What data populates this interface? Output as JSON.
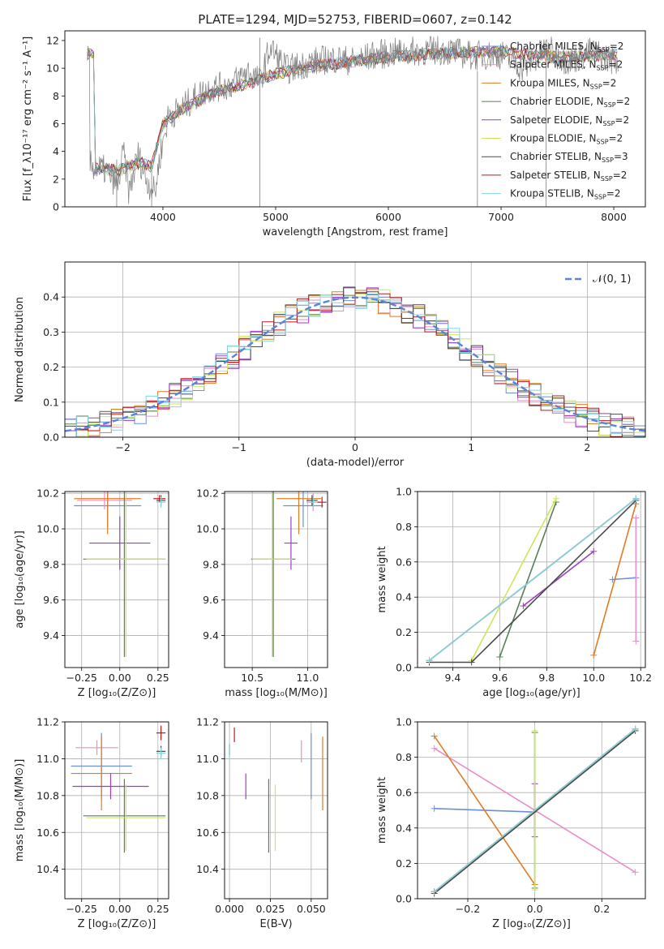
{
  "figure": {
    "title": "PLATE=1294, MJD=52753, FIBERID=0607, z=0.142"
  },
  "model_colors": {
    "Chabrier MILES": "#6b8fd6",
    "Salpeter MILES": "#e98ec8",
    "Kroupa MILES": "#e07b24",
    "Chabrier ELODIE": "#5a7f5a",
    "Salpeter ELODIE": "#9b3fc0",
    "Kroupa ELODIE": "#c9e85a",
    "Chabrier STELIB": "#4a4a4a",
    "Salpeter STELIB": "#c1181c",
    "Kroupa STELIB": "#7fd8df"
  },
  "chart_data": [
    {
      "id": "spectrum",
      "type": "line",
      "xlabel": "wavelength [Angstrom, rest frame]",
      "ylabel": "Flux [f_λ10⁻¹⁷ erg cm⁻² s⁻¹ A⁻¹]",
      "xlim": [
        3130,
        8280
      ],
      "ylim": [
        0,
        12.7
      ],
      "xticks": [
        4000,
        5000,
        6000,
        7000,
        8000
      ],
      "yticks": [
        0,
        2,
        4,
        6,
        8,
        10,
        12
      ],
      "grid": false,
      "legend_position": "top-right",
      "legend": [
        {
          "model": "Chabrier MILES",
          "label": "Chabrier MILES, N",
          "sub": "SSP",
          "suffix": "=2"
        },
        {
          "model": "Salpeter MILES",
          "label": "Salpeter MILES, N",
          "sub": "SSP",
          "suffix": "=2"
        },
        {
          "model": "Kroupa MILES",
          "label": "Kroupa MILES, N",
          "sub": "SSP",
          "suffix": "=2"
        },
        {
          "model": "Chabrier ELODIE",
          "label": "Chabrier ELODIE, N",
          "sub": "SSP",
          "suffix": "=2"
        },
        {
          "model": "Salpeter ELODIE",
          "label": "Salpeter ELODIE, N",
          "sub": "SSP",
          "suffix": "=2"
        },
        {
          "model": "Kroupa ELODIE",
          "label": "Kroupa ELODIE, N",
          "sub": "SSP",
          "suffix": "=2"
        },
        {
          "model": "Chabrier STELIB",
          "label": "Chabrier STELIB, N",
          "sub": "SSP",
          "suffix": "=3"
        },
        {
          "model": "Salpeter STELIB",
          "label": "Salpeter STELIB, N",
          "sub": "SSP",
          "suffix": "=2"
        },
        {
          "model": "Kroupa STELIB",
          "label": "Kroupa STELIB, N",
          "sub": "SSP",
          "suffix": "=2"
        }
      ],
      "continuum": [
        [
          3400,
          2.8
        ],
        [
          3600,
          2.6
        ],
        [
          3800,
          3.2
        ],
        [
          3900,
          2.9
        ],
        [
          4000,
          6.0
        ],
        [
          4200,
          7.2
        ],
        [
          4500,
          8.4
        ],
        [
          4800,
          9.0
        ],
        [
          5000,
          9.6
        ],
        [
          5300,
          10.1
        ],
        [
          5600,
          10.4
        ],
        [
          6000,
          10.8
        ],
        [
          6500,
          11.1
        ],
        [
          7000,
          11.2
        ],
        [
          7500,
          10.8
        ],
        [
          8000,
          11.0
        ]
      ],
      "data_spectrum": [
        [
          3350,
          3.0
        ],
        [
          3500,
          2.6
        ],
        [
          3600,
          1.5
        ],
        [
          3650,
          4.0
        ],
        [
          3700,
          1.0
        ],
        [
          3780,
          3.8
        ],
        [
          3850,
          2.0
        ],
        [
          3930,
          1.0
        ],
        [
          3970,
          3.5
        ],
        [
          4050,
          6.6
        ],
        [
          4150,
          7.0
        ],
        [
          4300,
          8.0
        ],
        [
          4400,
          8.5
        ],
        [
          4600,
          8.8
        ],
        [
          4750,
          9.8
        ],
        [
          4860,
          9.0
        ],
        [
          4950,
          11.5
        ],
        [
          5100,
          9.9
        ],
        [
          5300,
          10.4
        ],
        [
          5500,
          10.7
        ],
        [
          5700,
          10.5
        ],
        [
          5900,
          11.0
        ],
        [
          6200,
          11.2
        ],
        [
          6500,
          11.3
        ],
        [
          6750,
          10.9
        ],
        [
          7000,
          11.0
        ],
        [
          7200,
          10.0
        ],
        [
          7400,
          11.4
        ],
        [
          7600,
          10.5
        ],
        [
          7800,
          11.2
        ],
        [
          8000,
          10.6
        ]
      ],
      "sharp_features": [
        {
          "x": 3590,
          "ymin": 0,
          "ymax": 3.4
        },
        {
          "x": 3900,
          "ymin": 0,
          "ymax": 3.0
        },
        {
          "x": 4860,
          "ymin": 0,
          "ymax": 12.2
        },
        {
          "x": 6790,
          "ymin": 0,
          "ymax": 9.8
        },
        {
          "x": 7400,
          "ymin": 0,
          "ymax": 11.5
        }
      ]
    },
    {
      "id": "residuals",
      "type": "area",
      "xlabel": "(data-model)/error",
      "ylabel": "Normed distribution",
      "xlim": [
        -2.5,
        2.5
      ],
      "ylim": [
        0,
        0.5
      ],
      "xticks": [
        -2,
        -1,
        0,
        1,
        2
      ],
      "yticks": [
        0,
        0.1,
        0.2,
        0.3,
        0.4
      ],
      "grid": true,
      "legend_position": "top-right",
      "gaussian_label": "𝒩(0, 1)",
      "bin_width": 0.1,
      "bin_start": -2.5
    },
    {
      "id": "age_vs_z",
      "type": "scatter",
      "xlabel": "Z [log₁₀(Z/Z⊙)]",
      "ylabel": "age  [log₁₀(age/yr)]",
      "xlim": [
        -0.36,
        0.32
      ],
      "ylim": [
        9.22,
        10.21
      ],
      "xticks": [
        -0.25,
        0.0,
        0.25
      ],
      "yticks": [
        9.4,
        9.6,
        9.8,
        10.0,
        10.2
      ],
      "grid": true,
      "points": [
        {
          "model": "Chabrier MILES",
          "x": -0.08,
          "y": 10.13,
          "xerr": 0.22,
          "yerr": 0.12
        },
        {
          "model": "Salpeter MILES",
          "x": -0.1,
          "y": 10.16,
          "xerr": 0.18,
          "yerr": 0.05
        },
        {
          "model": "Kroupa MILES",
          "x": -0.08,
          "y": 10.17,
          "xerr": 0.22,
          "yerr": 0.2
        },
        {
          "model": "Chabrier ELODIE",
          "x": 0.03,
          "y": 9.83,
          "xerr": 0.27,
          "yerr": 0.55
        },
        {
          "model": "Salpeter ELODIE",
          "x": 0.0,
          "y": 9.92,
          "xerr": 0.2,
          "yerr": 0.15
        },
        {
          "model": "Kroupa ELODIE",
          "x": 0.04,
          "y": 9.83,
          "xerr": 0.26,
          "yerr": 0.55
        },
        {
          "model": "Chabrier STELIB",
          "x": 0.27,
          "y": 10.16,
          "xerr": 0.03,
          "yerr": 0.03
        },
        {
          "model": "Salpeter STELIB",
          "x": 0.26,
          "y": 10.17,
          "xerr": 0.04,
          "yerr": 0.02
        },
        {
          "model": "Kroupa STELIB",
          "x": 0.27,
          "y": 10.15,
          "xerr": 0.03,
          "yerr": 0.03
        }
      ]
    },
    {
      "id": "age_vs_mass",
      "type": "scatter",
      "xlabel": "mass [log₁₀(M/M⊙)]",
      "ylabel": "",
      "xlim": [
        10.25,
        11.18
      ],
      "ylim": [
        9.22,
        10.21
      ],
      "xticks": [
        10.5,
        11.0
      ],
      "yticks": [
        9.4,
        9.6,
        9.8,
        10.0,
        10.2
      ],
      "grid": true,
      "points": [
        {
          "model": "Chabrier MILES",
          "x": 10.96,
          "y": 10.13,
          "xerr": 0.18,
          "yerr": 0.12
        },
        {
          "model": "Salpeter MILES",
          "x": 11.05,
          "y": 10.15,
          "xerr": 0.06,
          "yerr": 0.05
        },
        {
          "model": "Kroupa MILES",
          "x": 10.92,
          "y": 10.17,
          "xerr": 0.2,
          "yerr": 0.2
        },
        {
          "model": "Chabrier ELODIE",
          "x": 10.69,
          "y": 9.83,
          "xerr": 0.2,
          "yerr": 0.55
        },
        {
          "model": "Salpeter ELODIE",
          "x": 10.85,
          "y": 9.92,
          "xerr": 0.06,
          "yerr": 0.15
        },
        {
          "model": "Kroupa ELODIE",
          "x": 10.68,
          "y": 9.83,
          "xerr": 0.18,
          "yerr": 0.55
        },
        {
          "model": "Chabrier STELIB",
          "x": 11.04,
          "y": 10.16,
          "xerr": 0.05,
          "yerr": 0.03
        },
        {
          "model": "Salpeter STELIB",
          "x": 11.13,
          "y": 10.15,
          "xerr": 0.04,
          "yerr": 0.03
        },
        {
          "model": "Kroupa STELIB",
          "x": 11.05,
          "y": 10.15,
          "xerr": 0.03,
          "yerr": 0.03
        }
      ]
    },
    {
      "id": "weight_vs_age",
      "type": "line",
      "xlabel": "age  [log₁₀(age/yr)]",
      "ylabel": "mass weight",
      "xlim": [
        9.25,
        10.22
      ],
      "ylim": [
        0,
        1
      ],
      "xticks": [
        9.4,
        9.6,
        9.8,
        10.0,
        10.2
      ],
      "yticks": [
        0,
        0.2,
        0.4,
        0.6,
        0.8,
        1.0
      ],
      "grid": true,
      "series": [
        {
          "model": "Chabrier MILES",
          "x": [
            10.08,
            10.18
          ],
          "y": [
            0.5,
            0.51
          ]
        },
        {
          "model": "Salpeter MILES",
          "x": [
            10.18,
            10.18
          ],
          "y": [
            0.15,
            0.85
          ]
        },
        {
          "model": "Kroupa MILES",
          "x": [
            10.0,
            10.18
          ],
          "y": [
            0.07,
            0.93
          ]
        },
        {
          "model": "Chabrier ELODIE",
          "x": [
            9.6,
            9.84
          ],
          "y": [
            0.06,
            0.94
          ]
        },
        {
          "model": "Salpeter ELODIE",
          "x": [
            9.7,
            10.0
          ],
          "y": [
            0.35,
            0.66
          ]
        },
        {
          "model": "Kroupa ELODIE",
          "x": [
            9.48,
            9.84
          ],
          "y": [
            0.04,
            0.96
          ]
        },
        {
          "model": "Chabrier STELIB",
          "x": [
            9.3,
            9.48,
            10.18
          ],
          "y": [
            0.03,
            0.03,
            0.95
          ]
        },
        {
          "model": "Salpeter STELIB",
          "x": [
            9.3,
            10.18
          ],
          "y": [
            0.04,
            0.96
          ]
        },
        {
          "model": "Kroupa STELIB",
          "x": [
            9.3,
            10.18
          ],
          "y": [
            0.04,
            0.96
          ]
        }
      ]
    },
    {
      "id": "mass_vs_z",
      "type": "scatter",
      "xlabel": "Z [log₁₀(Z/Z⊙)]",
      "ylabel": "mass [log₁₀(M/M⊙)]",
      "xlim": [
        -0.36,
        0.32
      ],
      "ylim": [
        10.24,
        11.2
      ],
      "xticks": [
        -0.25,
        0.0,
        0.25
      ],
      "yticks": [
        10.4,
        10.6,
        10.8,
        11.0,
        11.2
      ],
      "grid": true,
      "points": [
        {
          "model": "Chabrier MILES",
          "x": -0.12,
          "y": 10.96,
          "xerr": 0.2,
          "yerr": 0.18
        },
        {
          "model": "Salpeter MILES",
          "x": -0.15,
          "y": 11.06,
          "xerr": 0.14,
          "yerr": 0.04
        },
        {
          "model": "Kroupa MILES",
          "x": -0.12,
          "y": 10.92,
          "xerr": 0.2,
          "yerr": 0.2
        },
        {
          "model": "Chabrier ELODIE",
          "x": 0.03,
          "y": 10.69,
          "xerr": 0.27,
          "yerr": 0.2
        },
        {
          "model": "Salpeter ELODIE",
          "x": -0.06,
          "y": 10.85,
          "xerr": 0.25,
          "yerr": 0.07
        },
        {
          "model": "Kroupa ELODIE",
          "x": 0.04,
          "y": 10.68,
          "xerr": 0.26,
          "yerr": 0.18
        },
        {
          "model": "Chabrier STELIB",
          "x": 0.27,
          "y": 11.04,
          "xerr": 0.03,
          "yerr": 0.03
        },
        {
          "model": "Salpeter STELIB",
          "x": 0.27,
          "y": 11.14,
          "xerr": 0.03,
          "yerr": 0.04
        },
        {
          "model": "Kroupa STELIB",
          "x": 0.27,
          "y": 11.03,
          "xerr": 0.03,
          "yerr": 0.03
        }
      ]
    },
    {
      "id": "mass_vs_ebv",
      "type": "scatter",
      "xlabel": "E(B-V)",
      "ylabel": "",
      "xlim": [
        -0.003,
        0.06
      ],
      "ylim": [
        10.24,
        11.2
      ],
      "xticks": [
        0.0,
        0.025,
        0.05
      ],
      "yticks": [
        10.4,
        10.6,
        10.8,
        11.0,
        11.2
      ],
      "grid": true,
      "points": [
        {
          "model": "Chabrier MILES",
          "x": 0.05,
          "y": 10.96,
          "xerr": 0,
          "yerr": 0.18
        },
        {
          "model": "Salpeter MILES",
          "x": 0.044,
          "y": 11.04,
          "xerr": 0,
          "yerr": 0.06
        },
        {
          "model": "Kroupa MILES",
          "x": 0.057,
          "y": 10.92,
          "xerr": 0,
          "yerr": 0.2
        },
        {
          "model": "Chabrier ELODIE",
          "x": 0.024,
          "y": 10.69,
          "xerr": 0,
          "yerr": 0.2
        },
        {
          "model": "Salpeter ELODIE",
          "x": 0.01,
          "y": 10.85,
          "xerr": 0,
          "yerr": 0.07
        },
        {
          "model": "Kroupa ELODIE",
          "x": 0.028,
          "y": 10.68,
          "xerr": 0,
          "yerr": 0.18
        },
        {
          "model": "Chabrier STELIB",
          "x": 0.0,
          "y": 11.05,
          "xerr": 0,
          "yerr": 0.03
        },
        {
          "model": "Salpeter STELIB",
          "x": 0.003,
          "y": 11.13,
          "xerr": 0,
          "yerr": 0.04
        },
        {
          "model": "Kroupa STELIB",
          "x": 0.0,
          "y": 11.04,
          "xerr": 0,
          "yerr": 0.04
        }
      ]
    },
    {
      "id": "weight_vs_z",
      "type": "line",
      "xlabel": "Z [log₁₀(Z/Z⊙)]",
      "ylabel": "mass weight",
      "xlim": [
        -0.35,
        0.33
      ],
      "ylim": [
        0,
        1
      ],
      "xticks": [
        -0.2,
        0.0,
        0.2
      ],
      "yticks": [
        0,
        0.2,
        0.4,
        0.6,
        0.8,
        1.0
      ],
      "grid": true,
      "series": [
        {
          "model": "Chabrier MILES",
          "x": [
            -0.3,
            0.0
          ],
          "y": [
            0.51,
            0.49
          ]
        },
        {
          "model": "Salpeter MILES",
          "x": [
            -0.3,
            0.3
          ],
          "y": [
            0.85,
            0.15
          ]
        },
        {
          "model": "Kroupa MILES",
          "x": [
            -0.3,
            0.0
          ],
          "y": [
            0.92,
            0.08
          ]
        },
        {
          "model": "Chabrier ELODIE",
          "x": [
            0.0,
            0.0
          ],
          "y": [
            0.06,
            0.94
          ]
        },
        {
          "model": "Salpeter ELODIE",
          "x": [
            0.0,
            0.0
          ],
          "y": [
            0.35,
            0.65
          ]
        },
        {
          "model": "Kroupa ELODIE",
          "x": [
            0.0,
            0.0
          ],
          "y": [
            0.05,
            0.95
          ]
        },
        {
          "model": "Chabrier STELIB",
          "x": [
            -0.3,
            0.3
          ],
          "y": [
            0.03,
            0.95
          ]
        },
        {
          "model": "Salpeter STELIB",
          "x": [
            -0.3,
            0.3
          ],
          "y": [
            0.04,
            0.96
          ]
        },
        {
          "model": "Kroupa STELIB",
          "x": [
            -0.3,
            0.3
          ],
          "y": [
            0.04,
            0.96
          ]
        }
      ]
    }
  ]
}
